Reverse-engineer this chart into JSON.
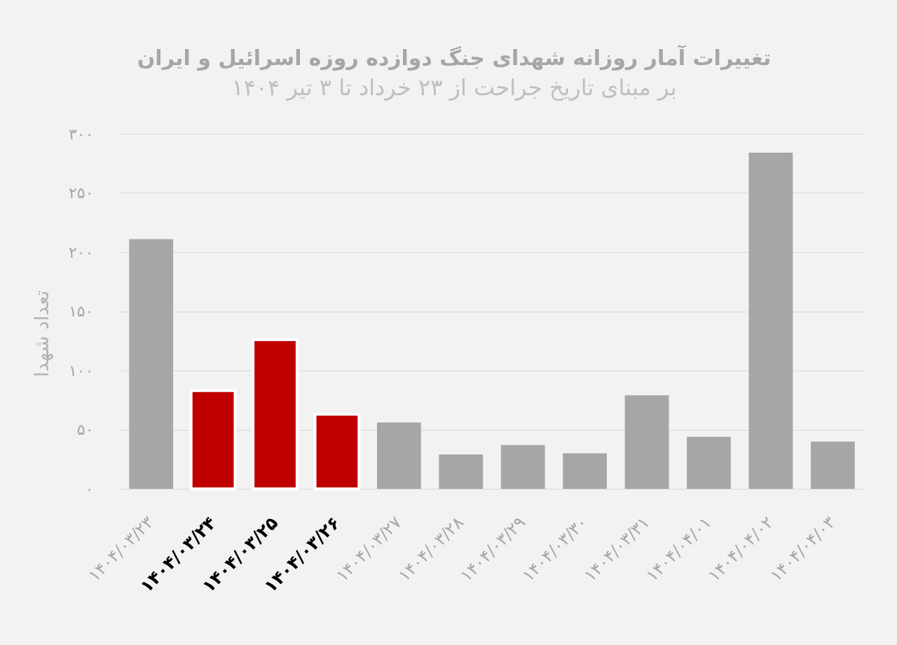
{
  "chart_data": {
    "type": "bar",
    "title": "تغییرات آمار روزانه شهدای جنگ دوازده روزه اسرائیل و ایران",
    "subtitle": "بر مبنای تاریخ جراحت از ۲۳ خرداد تا ۳ تیر ۱۴۰۴",
    "ylabel": "تعداد شهدا",
    "categories": [
      "۱۴۰۴/۰۳/۲۳",
      "۱۴۰۴/۰۳/۲۴",
      "۱۴۰۴/۰۳/۲۵",
      "۱۴۰۴/۰۳/۲۶",
      "۱۴۰۴/۰۳/۲۷",
      "۱۴۰۴/۰۳/۲۸",
      "۱۴۰۴/۰۳/۲۹",
      "۱۴۰۴/۰۳/۳۰",
      "۱۴۰۴/۰۳/۳۱",
      "۱۴۰۴/۰۴/۰۱",
      "۱۴۰۴/۰۴/۰۲",
      "۱۴۰۴/۰۴/۰۳"
    ],
    "values": [
      211,
      83,
      126,
      63,
      56,
      29,
      37,
      30,
      79,
      44,
      284,
      40
    ],
    "colors": [
      "#a6a6a6",
      "#c00000",
      "#c00000",
      "#c00000",
      "#a6a6a6",
      "#a6a6a6",
      "#a6a6a6",
      "#a6a6a6",
      "#a6a6a6",
      "#a6a6a6",
      "#a6a6a6",
      "#a6a6a6"
    ],
    "ylim": [
      0,
      300
    ],
    "yticks": [
      {
        "value": 0,
        "label": "۰"
      },
      {
        "value": 50,
        "label": "۵۰"
      },
      {
        "value": 100,
        "label": "۱۰۰"
      },
      {
        "value": 150,
        "label": "۱۵۰"
      },
      {
        "value": 200,
        "label": "۲۰۰"
      },
      {
        "value": 250,
        "label": "۲۵۰"
      },
      {
        "value": 300,
        "label": "۳۰۰"
      }
    ],
    "grid": "y"
  }
}
